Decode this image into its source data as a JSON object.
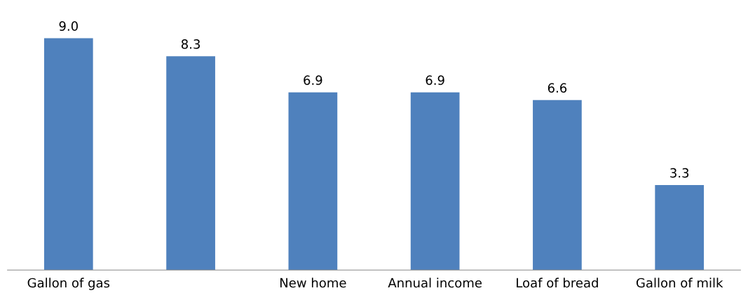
{
  "chart_data": {
    "type": "bar",
    "categories": [
      "Gallon of gas",
      null,
      "New home",
      "Annual income",
      "Loaf of bread",
      "Gallon of milk"
    ],
    "values": [
      9.0,
      8.3,
      6.9,
      6.9,
      6.6,
      3.3
    ],
    "color": "#4f81bd",
    "value_labels": [
      "9.0",
      "8.3",
      "6.9",
      "6.9",
      "6.6",
      "3.3"
    ],
    "grid": false,
    "legend": false
  }
}
